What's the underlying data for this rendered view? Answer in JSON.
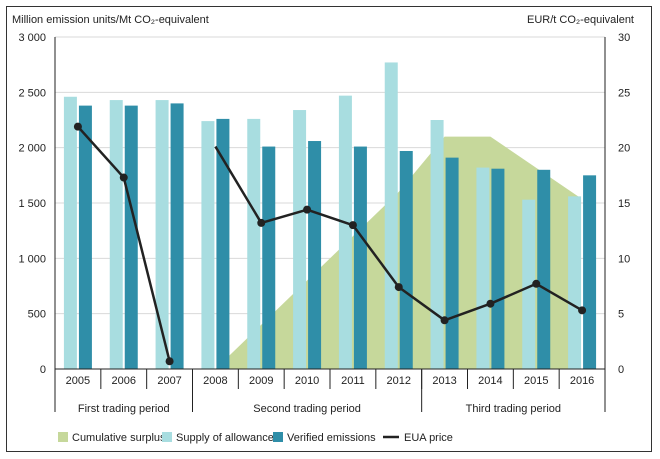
{
  "chart_data": {
    "type": "bar",
    "categories": [
      "2005",
      "2006",
      "2007",
      "2008",
      "2009",
      "2010",
      "2011",
      "2012",
      "2013",
      "2014",
      "2015",
      "2016"
    ],
    "series": [
      {
        "name": "Supply of allowances",
        "kind": "bar",
        "axis": "left",
        "color": "#a8dde0",
        "values": [
          2460,
          2430,
          2430,
          2240,
          2260,
          2340,
          2470,
          2770,
          2250,
          1820,
          1530,
          1560
        ]
      },
      {
        "name": "Verified emissions",
        "kind": "bar",
        "axis": "left",
        "color": "#2f8ea8",
        "values": [
          2380,
          2380,
          2400,
          2260,
          2010,
          2060,
          2010,
          1970,
          1910,
          1810,
          1800,
          1750
        ]
      },
      {
        "name": "Cumulative surplus",
        "kind": "area",
        "axis": "left",
        "color": "#c6d89b",
        "x": [
          2008,
          2012,
          2013,
          2014,
          2016
        ],
        "values": [
          0,
          1600,
          2100,
          2100,
          1550
        ]
      },
      {
        "name": "EUA price",
        "kind": "line",
        "axis": "right",
        "color": "#222222",
        "values": [
          21.9,
          17.3,
          0.7,
          20.1,
          13.2,
          14.4,
          13.0,
          7.4,
          4.4,
          5.9,
          7.7,
          5.3
        ]
      }
    ],
    "ylabel_left": "Million emission units/Mt CO₂-equivalent",
    "ylabel_right": "EUR/t CO₂-equivalent",
    "ylim_left": [
      0,
      3000
    ],
    "ylim_right": [
      0,
      30
    ],
    "yticks_left": [
      "0",
      "500",
      "1 000",
      "1 500",
      "2 000",
      "2 500",
      "3 000"
    ],
    "yticks_right": [
      "0",
      "5",
      "10",
      "15",
      "20",
      "25",
      "30"
    ],
    "grid": true,
    "periods": [
      {
        "label": "First trading period",
        "from": "2005",
        "to": "2007"
      },
      {
        "label": "Second trading period",
        "from": "2008",
        "to": "2012"
      },
      {
        "label": "Third trading period",
        "from": "2013",
        "to": "2016"
      }
    ],
    "legend": [
      "Cumulative surplus",
      "Supply of allowances",
      "Verified emissions",
      "EUA price"
    ],
    "legend_position": "bottom"
  }
}
